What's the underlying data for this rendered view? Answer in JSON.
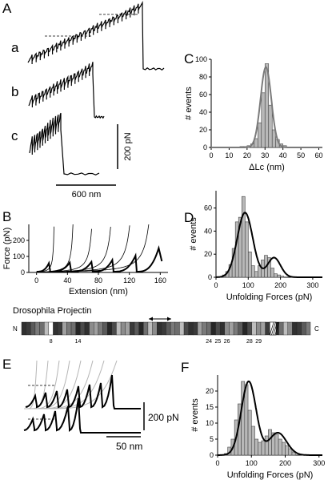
{
  "panels": {
    "A": {
      "label": "A",
      "traces": [
        "a",
        "b",
        "c"
      ],
      "scale_y": "200 pN",
      "scale_x": "600 nm"
    },
    "B": {
      "label": "B"
    },
    "C": {
      "label": "C"
    },
    "D": {
      "label": "D"
    },
    "E": {
      "label": "E",
      "scale_y": "200 pN",
      "scale_x": "50 nm"
    },
    "F": {
      "label": "F"
    }
  },
  "construct": {
    "title": "Drosophila Projectin",
    "n_label": "N",
    "c_label": "C",
    "domain_labels": [
      "8",
      "14",
      "24",
      "25",
      "26",
      "28",
      "29"
    ]
  },
  "colors": {
    "bars": "#b8b8b8",
    "fit_gray": "#7a7a7a",
    "fit_black": "#000000",
    "wlc_gray": "#b5b5b5"
  },
  "chart_data": [
    {
      "id": "B",
      "type": "line",
      "xlabel": "Extension (nm)",
      "ylabel": "Force (pN)",
      "xlim": [
        -10,
        170
      ],
      "ylim": [
        0,
        300
      ],
      "xticks": [
        "0",
        "40",
        "80",
        "120",
        "160"
      ],
      "yticks": [
        "0",
        "100",
        "200"
      ],
      "wlc_contour_lengths": [
        25,
        52,
        79,
        106,
        133,
        160
      ],
      "sawtooth_peaks": [
        {
          "x": 16,
          "y": 58
        },
        {
          "x": 43,
          "y": 62
        },
        {
          "x": 71,
          "y": 66
        },
        {
          "x": 98,
          "y": 78
        },
        {
          "x": 128,
          "y": 105
        },
        {
          "x": 158,
          "y": 152
        }
      ]
    },
    {
      "id": "C",
      "type": "bar",
      "xlabel": "ΔLc (nm)",
      "ylabel": "# events",
      "xlim": [
        0,
        62
      ],
      "ylim": [
        0,
        100
      ],
      "xticks": [
        "0",
        "10",
        "20",
        "30",
        "40",
        "50",
        "60"
      ],
      "yticks": [
        "0",
        "20",
        "40",
        "60",
        "80",
        "100"
      ],
      "bin_start": 16,
      "bin_width": 2,
      "values": [
        1,
        1,
        2,
        4,
        10,
        28,
        62,
        95,
        48,
        20,
        9,
        4,
        2
      ],
      "fit": {
        "shape": "gaussian",
        "mean": 30.5,
        "sd": 3.0,
        "amp": 91,
        "color": "gray"
      }
    },
    {
      "id": "D",
      "type": "bar",
      "xlabel": "Unfolding Forces (pN)",
      "ylabel": "# events",
      "xlim": [
        0,
        330
      ],
      "ylim": [
        0,
        75
      ],
      "xticks": [
        "0",
        "100",
        "200",
        "300"
      ],
      "yticks": [
        "0",
        "20",
        "40",
        "60"
      ],
      "bin_start": 20,
      "bin_width": 10,
      "values": [
        2,
        5,
        11,
        25,
        48,
        52,
        70,
        48,
        22,
        10,
        5,
        10,
        15,
        19,
        17,
        8,
        3,
        2,
        1
      ],
      "fit": {
        "shape": "double_gaussian",
        "mean1": 90,
        "sd1": 24,
        "amp1": 56,
        "mean2": 180,
        "sd2": 20,
        "amp2": 17,
        "color": "black"
      }
    },
    {
      "id": "F",
      "type": "bar",
      "xlabel": "Unfolding Forces (pN)",
      "ylabel": "# events",
      "xlim": [
        0,
        310
      ],
      "ylim": [
        0,
        25
      ],
      "xticks": [
        "0",
        "100",
        "200",
        "300"
      ],
      "yticks": [
        "0",
        "5",
        "10",
        "15",
        "20"
      ],
      "bin_start": 20,
      "bin_width": 10,
      "values": [
        0.5,
        2.5,
        5,
        11,
        16,
        23,
        22,
        14,
        9,
        5,
        4,
        4.5,
        6,
        8,
        7,
        6.5,
        5,
        4,
        3,
        2,
        1
      ],
      "fit": {
        "shape": "double_gaussian",
        "mean1": 92,
        "sd1": 22,
        "amp1": 23,
        "mean2": 178,
        "sd2": 26,
        "amp2": 7,
        "color": "black"
      }
    }
  ]
}
